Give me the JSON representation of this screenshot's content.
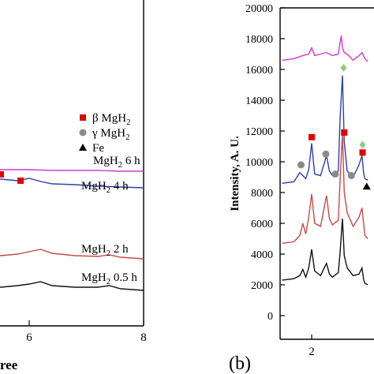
{
  "figure": {
    "panel_b_label": "(b)",
    "panel_a_xlabel_fragment": "ree"
  },
  "chart_data": [
    {
      "panel": "a",
      "type": "line",
      "xlabel": "",
      "ylabel": "",
      "xlim": [
        3.0,
        8.0
      ],
      "x_ticks": [
        6,
        8
      ],
      "x_tick_labels": [
        "6",
        "8"
      ],
      "grid": false,
      "legend_placement": "right",
      "legend": [
        {
          "marker": "square",
          "color": "#e00000",
          "label_prefix": "β MgH",
          "label_sub": "2"
        },
        {
          "marker": "circle",
          "color": "#8a8a8a",
          "label_prefix": "γ MgH",
          "label_sub": "2"
        },
        {
          "marker": "triangle",
          "color": "#000000",
          "label_prefix": "Fe",
          "label_sub": ""
        }
      ],
      "series": [
        {
          "color": "#cc3ccc",
          "label_prefix": "MgH",
          "label_sub": "2",
          "label_suffix": " 6 h",
          "x": [
            3.0,
            3.3,
            3.6,
            4.0,
            4.4,
            4.8,
            5.2,
            5.6,
            6.0,
            6.4,
            6.8,
            7.2,
            7.6,
            8.0
          ],
          "y": [
            212,
            213,
            213,
            214,
            214,
            214,
            215,
            215,
            215,
            216,
            216,
            216,
            217,
            217
          ]
        },
        {
          "color": "#2e3fa8",
          "label_prefix": "MgH",
          "label_sub": "2",
          "label_suffix": " 4 h",
          "x": [
            3.0,
            3.3,
            3.6,
            4.0,
            4.4,
            4.8,
            5.2,
            5.5,
            5.8,
            6.0,
            6.2,
            6.4,
            6.8,
            7.2,
            7.6,
            8.0
          ],
          "y": [
            226,
            227,
            227,
            228,
            228,
            229,
            229,
            227,
            229,
            226,
            230,
            233,
            234,
            236,
            237,
            238
          ]
        },
        {
          "color": "#c84a4a",
          "label_prefix": "MgH",
          "label_sub": "2",
          "label_suffix": " 2 h",
          "x": [
            3.0,
            3.3,
            3.6,
            4.0,
            4.4,
            4.8,
            5.2,
            5.5,
            5.8,
            6.0,
            6.2,
            6.4,
            6.8,
            7.2,
            7.4,
            7.6,
            8.0
          ],
          "y": [
            318,
            319,
            320,
            322,
            322,
            324,
            324,
            324,
            322,
            319,
            316,
            321,
            324,
            325,
            323,
            326,
            328
          ]
        },
        {
          "color": "#111111",
          "label_prefix": "MgH",
          "label_sub": "2",
          "label_suffix": " 0.5 h",
          "x": [
            3.0,
            3.3,
            3.6,
            4.0,
            4.4,
            4.8,
            5.2,
            5.5,
            5.8,
            6.0,
            6.2,
            6.4,
            6.8,
            7.2,
            7.4,
            7.6,
            8.0
          ],
          "y": [
            355,
            356,
            357,
            358,
            359,
            360,
            362,
            364,
            362,
            360,
            357,
            362,
            364,
            364,
            362,
            366,
            368
          ]
        }
      ],
      "annotations": [
        {
          "marker": "square",
          "color": "#e00000",
          "x": 5.85,
          "y": 229
        }
      ]
    },
    {
      "panel": "b",
      "type": "line",
      "xlabel": "",
      "ylabel": "Intensity, A. U.",
      "ylim": [
        0,
        20000
      ],
      "y_ticks": [
        0,
        2000,
        4000,
        6000,
        8000,
        10000,
        12000,
        14000,
        16000,
        18000,
        20000
      ],
      "y_tick_labels": [
        "0",
        "2000",
        "4000",
        "6000",
        "8000",
        "10000",
        "12000",
        "14000",
        "16000",
        "18000",
        "20000"
      ],
      "xlim": [
        1.5,
        3.0
      ],
      "x_ticks": [
        2
      ],
      "x_tick_labels": [
        "2"
      ],
      "grid": false,
      "series": [
        {
          "color": "#cc3ccc",
          "x": [
            1.5,
            1.7,
            1.85,
            1.95,
            2.0,
            2.05,
            2.15,
            2.25,
            2.35,
            2.45,
            2.5,
            2.52,
            2.55,
            2.6,
            2.7,
            2.8,
            2.85,
            2.9,
            2.95
          ],
          "y": [
            16600,
            16700,
            16900,
            17000,
            17400,
            16900,
            17000,
            17100,
            16900,
            17000,
            18200,
            17400,
            17100,
            17000,
            16600,
            16900,
            17100,
            16700,
            16500
          ]
        },
        {
          "color": "#2e3fa8",
          "x": [
            1.5,
            1.7,
            1.8,
            1.9,
            1.95,
            2.0,
            2.05,
            2.15,
            2.25,
            2.3,
            2.35,
            2.45,
            2.48,
            2.52,
            2.55,
            2.6,
            2.7,
            2.8,
            2.85,
            2.88,
            2.9,
            2.95
          ],
          "y": [
            8600,
            8700,
            9300,
            8900,
            9500,
            11200,
            9200,
            9100,
            10400,
            9400,
            9100,
            9400,
            12800,
            15600,
            11300,
            9400,
            9000,
            9800,
            10400,
            9200,
            8900,
            8800
          ]
        },
        {
          "color": "#c84a4a",
          "x": [
            1.5,
            1.7,
            1.8,
            1.85,
            1.9,
            1.95,
            2.0,
            2.05,
            2.15,
            2.25,
            2.3,
            2.35,
            2.45,
            2.48,
            2.52,
            2.55,
            2.6,
            2.7,
            2.8,
            2.85,
            2.88,
            2.9,
            2.95
          ],
          "y": [
            4700,
            4800,
            5200,
            6000,
            5300,
            6400,
            7900,
            6000,
            5800,
            7800,
            6300,
            5900,
            6200,
            8800,
            11800,
            8000,
            6700,
            5800,
            6400,
            7000,
            5900,
            5200,
            5000
          ]
        },
        {
          "color": "#111111",
          "x": [
            1.5,
            1.7,
            1.8,
            1.85,
            1.9,
            1.95,
            2.0,
            2.05,
            2.15,
            2.25,
            2.3,
            2.35,
            2.45,
            2.48,
            2.52,
            2.55,
            2.6,
            2.7,
            2.8,
            2.85,
            2.88,
            2.9,
            2.95
          ],
          "y": [
            2300,
            2400,
            2600,
            3000,
            2500,
            3100,
            4300,
            2900,
            2600,
            3400,
            2700,
            2500,
            2800,
            4100,
            6300,
            3900,
            3100,
            2600,
            2700,
            3100,
            2300,
            2100,
            2000
          ]
        }
      ],
      "annotations": [
        {
          "marker": "circle",
          "color": "#8a8a8a",
          "x": 1.82,
          "y": 9800
        },
        {
          "marker": "square",
          "color": "#e00000",
          "x": 2.0,
          "y": 11600
        },
        {
          "marker": "circle",
          "color": "#8a8a8a",
          "x": 2.24,
          "y": 10500
        },
        {
          "marker": "circle",
          "color": "#8a8a8a",
          "x": 2.4,
          "y": 9200
        },
        {
          "marker": "square",
          "color": "#e00000",
          "x": 2.55,
          "y": 11900
        },
        {
          "marker": "diamond",
          "color": "#8fcc7a",
          "x": 2.54,
          "y": 16100
        },
        {
          "marker": "circle",
          "color": "#8a8a8a",
          "x": 2.67,
          "y": 9100
        },
        {
          "marker": "diamond",
          "color": "#8fcc7a",
          "x": 2.86,
          "y": 11100
        },
        {
          "marker": "square",
          "color": "#e00000",
          "x": 2.86,
          "y": 10600
        },
        {
          "marker": "triangle",
          "color": "#000000",
          "x": 2.93,
          "y": 8400
        }
      ]
    }
  ]
}
